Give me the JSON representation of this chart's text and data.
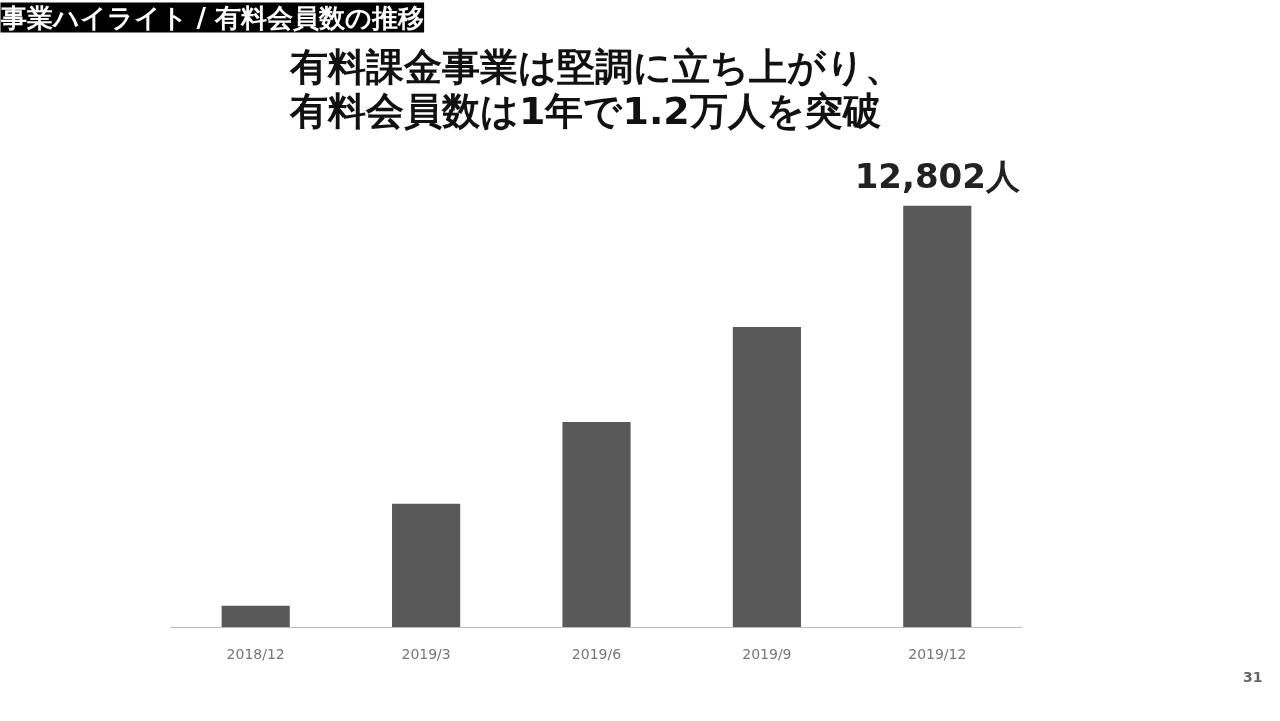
{
  "chart_data": {
    "type": "bar",
    "title": "事業ハイライト / 有料会員数の推移",
    "subtitle": "有料課金事業は堅調に立ち上がり、有料会員数は1年で1.2万人を突破",
    "categories": [
      "2018/12",
      "2019/3",
      "2019/6",
      "2019/9",
      "2019/12"
    ],
    "values": [
      660,
      3760,
      6240,
      9120,
      12802
    ],
    "value_labels": [
      null,
      null,
      null,
      null,
      "12,802人"
    ],
    "color": "#595959",
    "grid": false,
    "annotations": [
      "31"
    ]
  }
}
